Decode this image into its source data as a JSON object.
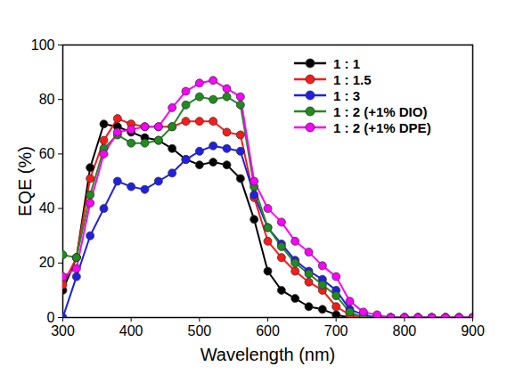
{
  "chart_data": {
    "type": "line",
    "x_label": "Wavelength (nm)",
    "y_label": "EQE (%)",
    "x": [
      300,
      320,
      340,
      360,
      380,
      400,
      420,
      440,
      460,
      480,
      500,
      520,
      540,
      560,
      580,
      600,
      620,
      640,
      660,
      680,
      700,
      720,
      740,
      760,
      780,
      800,
      820,
      840,
      860,
      880,
      900
    ],
    "series": [
      {
        "name": "1 : 1",
        "color": "#000000",
        "values": [
          10,
          22,
          55,
          71,
          70,
          68,
          66,
          65,
          62,
          58,
          56,
          57,
          56,
          51,
          36,
          17,
          10,
          7,
          4,
          3,
          1,
          0,
          0,
          0,
          0,
          0,
          0,
          0,
          0,
          0,
          0
        ]
      },
      {
        "name": "1 : 1.5",
        "color": "#ff1a1a",
        "values": [
          12,
          22,
          51,
          65,
          73,
          71,
          70,
          70,
          70,
          72,
          72,
          72,
          68,
          67,
          44,
          28,
          22,
          17,
          13,
          10,
          4,
          1,
          0,
          0,
          0,
          0,
          0,
          0,
          0,
          0,
          0
        ]
      },
      {
        "name": "1 : 3",
        "color": "#1f1fe6",
        "values": [
          0,
          15,
          30,
          40,
          50,
          48,
          47,
          50,
          53,
          58,
          61,
          63,
          62,
          61,
          45,
          33,
          27,
          21,
          17,
          14,
          10,
          3,
          1,
          0,
          0,
          0,
          0,
          0,
          0,
          0,
          0
        ]
      },
      {
        "name": "1 : 2 (+1% DIO)",
        "color": "#1e8c1e",
        "values": [
          23,
          22,
          45,
          62,
          67,
          64,
          64,
          65,
          70,
          78,
          81,
          80,
          81,
          78,
          48,
          33,
          26,
          20,
          16,
          12,
          8,
          2,
          0,
          0,
          0,
          0,
          0,
          0,
          0,
          0,
          0
        ]
      },
      {
        "name": "1 : 2 (+1% DPE)",
        "color": "#ff00ff",
        "values": [
          15,
          18,
          42,
          60,
          68,
          69,
          70,
          70,
          77,
          83,
          86,
          87,
          84,
          81,
          50,
          40,
          35,
          28,
          24,
          19,
          15,
          6,
          2,
          1,
          0,
          0,
          0,
          0,
          0,
          0,
          0
        ]
      }
    ],
    "xlim": [
      300,
      900
    ],
    "xticks": [
      300,
      400,
      500,
      600,
      700,
      800,
      900
    ],
    "ylim": [
      0,
      100
    ],
    "yticks": [
      0,
      20,
      40,
      60,
      80,
      100
    ],
    "grid": false,
    "legend": "top-right",
    "marker": "circle"
  }
}
